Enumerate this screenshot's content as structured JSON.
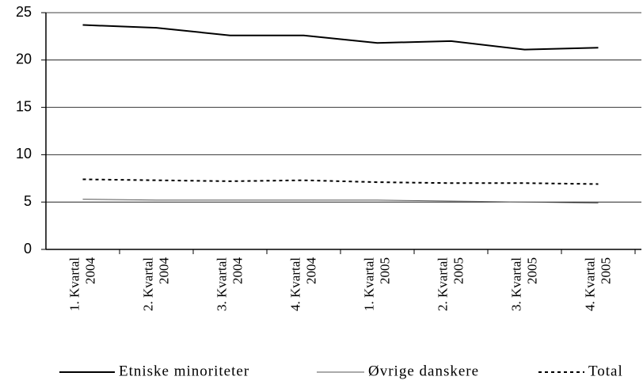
{
  "chart_data": {
    "type": "line",
    "categories": [
      [
        "1. Kvartal",
        "2004"
      ],
      [
        "2. Kvartal",
        "2004"
      ],
      [
        "3. Kvartal",
        "2004"
      ],
      [
        "4. Kvartal",
        "2004"
      ],
      [
        "1. Kvartal",
        "2005"
      ],
      [
        "2. Kvartal",
        "2005"
      ],
      [
        "3. Kvartal",
        "2005"
      ],
      [
        "4. Kvartal",
        "2005"
      ]
    ],
    "series": [
      {
        "name": "Etniske minoriteter",
        "color": "#000000",
        "dash": "solid",
        "width": 2,
        "values": [
          23.7,
          23.4,
          22.6,
          22.6,
          21.8,
          22.0,
          21.1,
          21.3
        ]
      },
      {
        "name": "Øvrige danskere",
        "color": "#555555",
        "dash": "solid",
        "width": 1,
        "values": [
          5.3,
          5.2,
          5.2,
          5.2,
          5.2,
          5.1,
          5.0,
          4.9
        ]
      },
      {
        "name": "Total",
        "color": "#000000",
        "dash": "dotted",
        "width": 2,
        "values": [
          7.4,
          7.3,
          7.2,
          7.3,
          7.1,
          7.0,
          7.0,
          6.9
        ]
      }
    ],
    "ylim": [
      0,
      25
    ],
    "yticks": [
      0,
      5,
      10,
      15,
      20,
      25
    ],
    "grid": true
  }
}
